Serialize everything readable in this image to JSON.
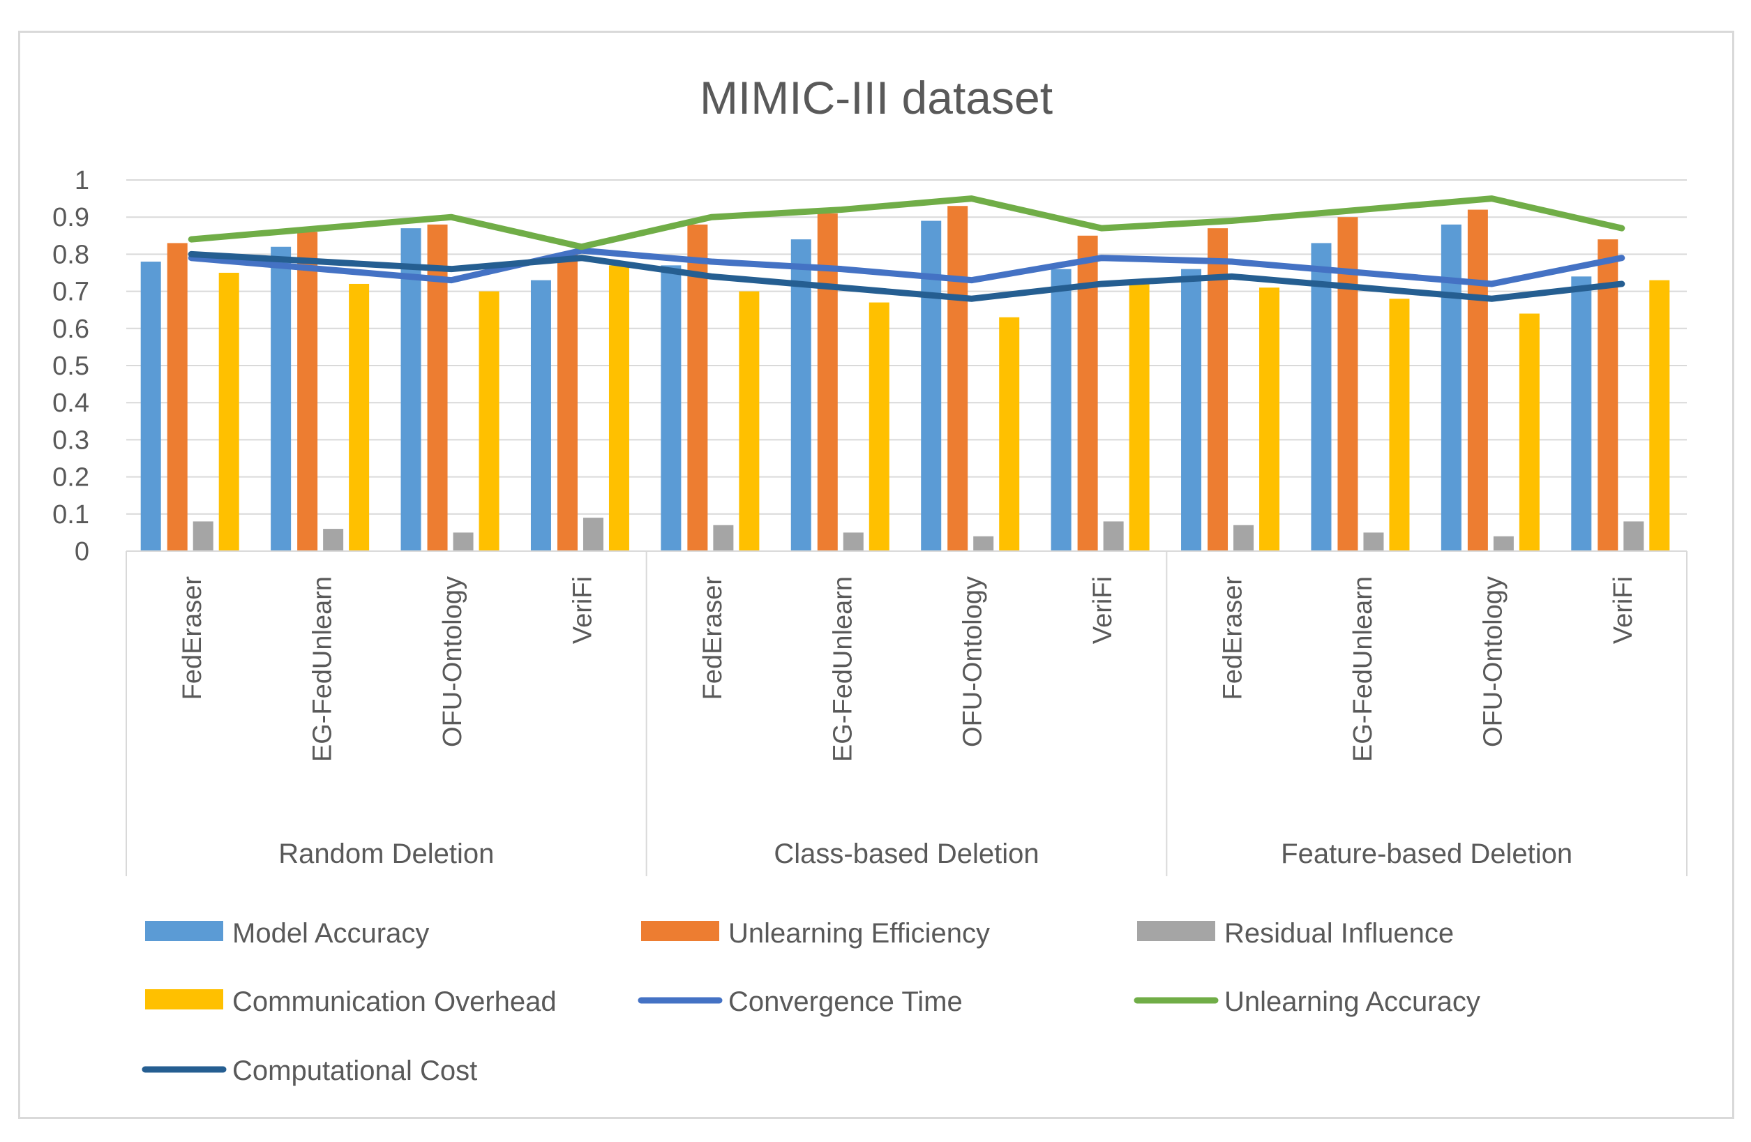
{
  "chart_data": {
    "type": "bar",
    "title": "MIMIC-III dataset",
    "ylim": [
      0,
      1
    ],
    "yticks": [
      "0",
      "0.1",
      "0.2",
      "0.3",
      "0.4",
      "0.5",
      "0.6",
      "0.7",
      "0.8",
      "0.9",
      "1"
    ],
    "groups": [
      {
        "name": "Random Deletion",
        "categories": [
          "FedEraser",
          "EG-FedUnlearn",
          "OFU-Ontology",
          "VeriFi"
        ]
      },
      {
        "name": "Class-based Deletion",
        "categories": [
          "FedEraser",
          "EG-FedUnlearn",
          "OFU-Ontology",
          "VeriFi"
        ]
      },
      {
        "name": "Feature-based Deletion",
        "categories": [
          "FedEraser",
          "EG-FedUnlearn",
          "OFU-Ontology",
          "VeriFi"
        ]
      }
    ],
    "series": [
      {
        "name": "Model Accuracy",
        "kind": "bar",
        "color": "#5b9bd5",
        "values": [
          0.78,
          0.82,
          0.87,
          0.73,
          0.77,
          0.84,
          0.89,
          0.76,
          0.76,
          0.83,
          0.88,
          0.74
        ]
      },
      {
        "name": "Unlearning Efficiency",
        "kind": "bar",
        "color": "#ed7d31",
        "values": [
          0.83,
          0.86,
          0.88,
          0.8,
          0.88,
          0.91,
          0.93,
          0.85,
          0.87,
          0.9,
          0.92,
          0.84
        ]
      },
      {
        "name": "Residual Influence",
        "kind": "bar",
        "color": "#a5a5a5",
        "values": [
          0.08,
          0.06,
          0.05,
          0.09,
          0.07,
          0.05,
          0.04,
          0.08,
          0.07,
          0.05,
          0.04,
          0.08
        ]
      },
      {
        "name": "Communication Overhead",
        "kind": "bar",
        "color": "#ffc000",
        "values": [
          0.75,
          0.72,
          0.7,
          0.77,
          0.7,
          0.67,
          0.63,
          0.72,
          0.71,
          0.68,
          0.64,
          0.73
        ]
      },
      {
        "name": "Convergence Time",
        "kind": "line",
        "color": "#4472c4",
        "values": [
          0.79,
          0.76,
          0.73,
          0.81,
          0.78,
          0.76,
          0.73,
          0.79,
          0.78,
          0.75,
          0.72,
          0.79
        ]
      },
      {
        "name": "Unlearning Accuracy",
        "kind": "line",
        "color": "#70ad47",
        "values": [
          0.84,
          0.87,
          0.9,
          0.82,
          0.9,
          0.92,
          0.95,
          0.87,
          0.89,
          0.92,
          0.95,
          0.87
        ]
      },
      {
        "name": "Computational Cost",
        "kind": "line",
        "color": "#255e91",
        "values": [
          0.8,
          0.78,
          0.76,
          0.79,
          0.74,
          0.71,
          0.68,
          0.72,
          0.74,
          0.71,
          0.68,
          0.72
        ]
      }
    ],
    "legend_position": "bottom",
    "grid": true
  }
}
